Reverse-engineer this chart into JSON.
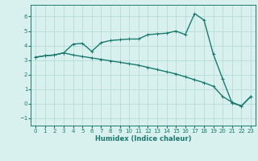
{
  "xlabel": "Humidex (Indice chaleur)",
  "background_color": "#d8f0ee",
  "grid_color": "#b8dbd8",
  "line_color": "#1a7a6e",
  "xlim": [
    -0.5,
    23.5
  ],
  "ylim": [
    -1.5,
    6.8
  ],
  "xticks": [
    0,
    1,
    2,
    3,
    4,
    5,
    6,
    7,
    8,
    9,
    10,
    11,
    12,
    13,
    14,
    15,
    16,
    17,
    18,
    19,
    20,
    21,
    22,
    23
  ],
  "yticks": [
    -1,
    0,
    1,
    2,
    3,
    4,
    5,
    6
  ],
  "curve1_x": [
    0,
    1,
    2,
    3,
    4,
    5,
    6,
    7,
    8,
    9,
    10,
    11,
    12,
    13,
    14,
    15,
    16,
    17,
    18,
    19,
    20,
    21,
    22,
    23
  ],
  "curve1_y": [
    3.2,
    3.3,
    3.35,
    3.5,
    4.1,
    4.15,
    3.6,
    4.2,
    4.35,
    4.4,
    4.45,
    4.45,
    4.75,
    4.8,
    4.85,
    5.0,
    4.75,
    6.2,
    5.75,
    3.4,
    1.7,
    0.05,
    -0.15,
    0.5
  ],
  "curve2_x": [
    0,
    1,
    2,
    3,
    4,
    5,
    6,
    7,
    8,
    9,
    10,
    11,
    12,
    13,
    14,
    15,
    16,
    17,
    18,
    19,
    20,
    21,
    22,
    23
  ],
  "curve2_y": [
    3.2,
    3.3,
    3.35,
    3.5,
    3.35,
    3.25,
    3.15,
    3.05,
    2.95,
    2.85,
    2.75,
    2.65,
    2.5,
    2.35,
    2.2,
    2.05,
    1.85,
    1.65,
    1.45,
    1.2,
    0.5,
    0.1,
    -0.15,
    0.5
  ],
  "markersize": 3,
  "linewidth": 1.0
}
